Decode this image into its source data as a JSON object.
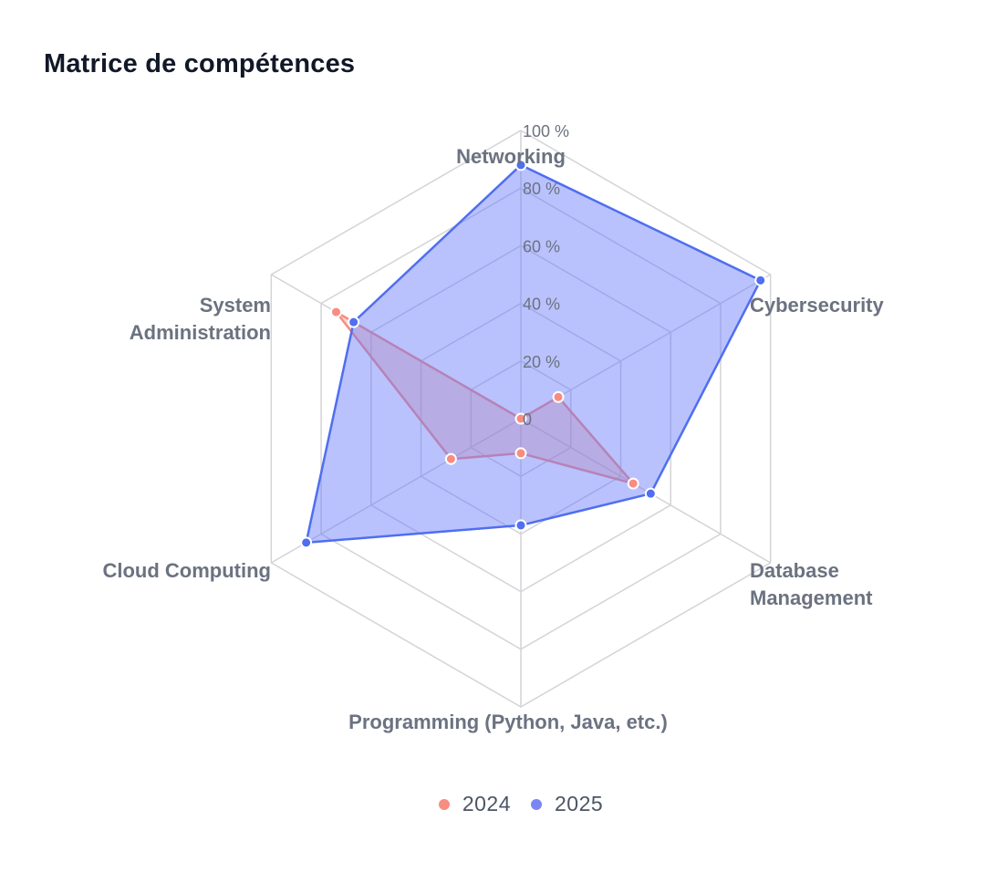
{
  "chart_data": {
    "type": "radar",
    "title": "Matrice de compétences",
    "axes": [
      [
        "Networking"
      ],
      [
        "Cybersecurity"
      ],
      [
        "Database",
        "Management"
      ],
      [
        "Programming (Python, Java, etc.)"
      ],
      [
        "Cloud Computing"
      ],
      [
        "System",
        "Administration"
      ]
    ],
    "ticks": [
      "0",
      "20 %",
      "40 %",
      "60 %",
      "80 %",
      "100 %"
    ],
    "range": [
      0,
      100
    ],
    "series": [
      {
        "name": "2024",
        "values": [
          0,
          15,
          45,
          12,
          28,
          74
        ],
        "color": "#f98c80",
        "fill": "rgba(249,140,128,0.35)"
      },
      {
        "name": "2025",
        "values": [
          88,
          96,
          52,
          37,
          86,
          67
        ],
        "color": "#4f6ef0",
        "fill": "rgba(99,120,250,0.45)"
      }
    ],
    "legend": "bottom"
  },
  "legend": {
    "items": [
      {
        "label": "2024",
        "color": "#f98c80"
      },
      {
        "label": "2025",
        "color": "#7b86f4"
      }
    ]
  }
}
